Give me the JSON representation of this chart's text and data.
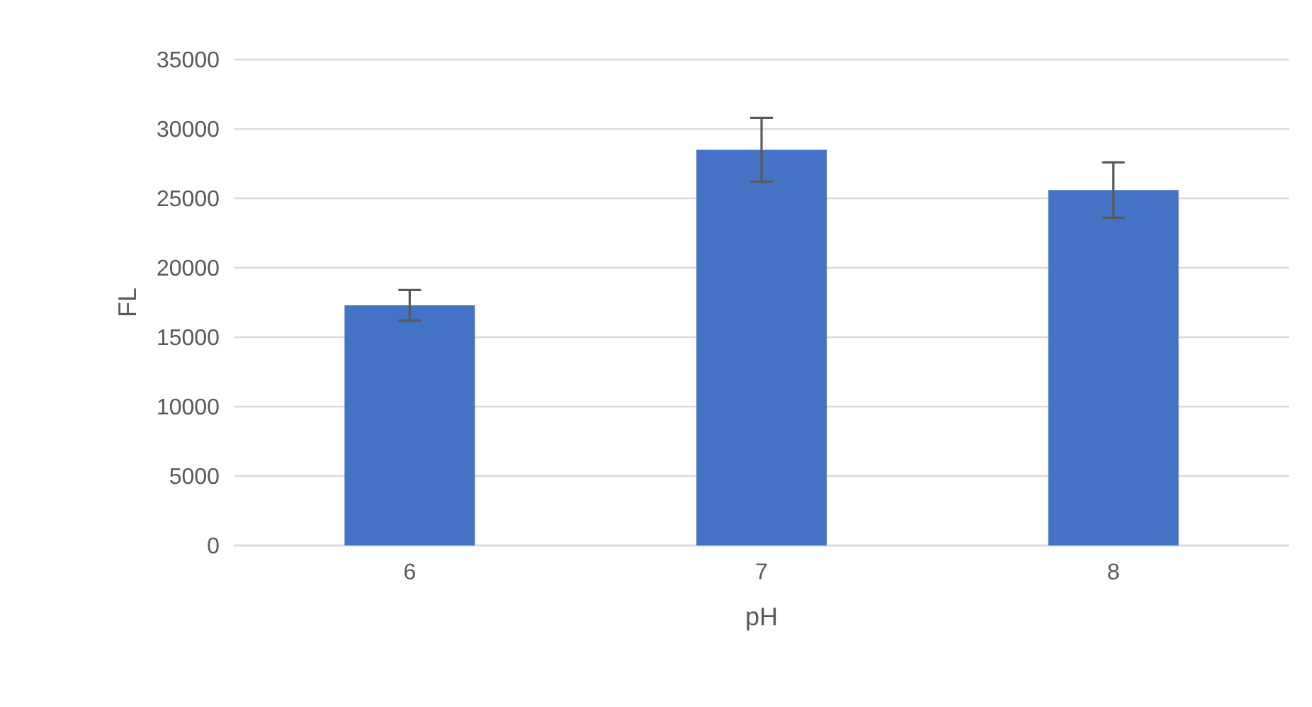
{
  "chart_data": {
    "type": "bar",
    "xlabel": "pH",
    "ylabel": "FL",
    "categories": [
      "6",
      "7",
      "8"
    ],
    "values": [
      17300,
      28500,
      25600
    ],
    "errors": [
      1100,
      2300,
      2000
    ],
    "color": "#4472c4",
    "ylim": [
      0,
      35000
    ],
    "yticks": [
      0,
      5000,
      10000,
      15000,
      20000,
      25000,
      30000,
      35000
    ],
    "grid": "y"
  }
}
